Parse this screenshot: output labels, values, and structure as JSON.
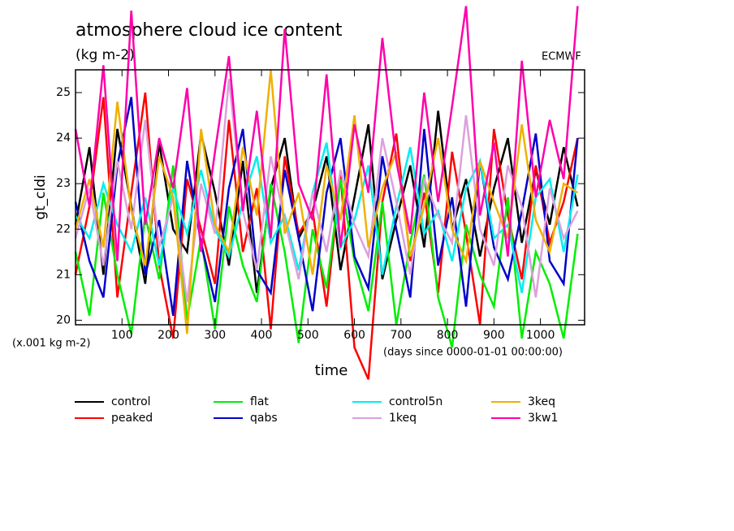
{
  "chart_data": {
    "type": "line",
    "title": "atmosphere cloud ice content",
    "subtitle": "(kg m-2)",
    "source": "ECMWF",
    "y_label": "gt_cldi",
    "y_unit": "(x.001 kg m-2)",
    "x_label": "time",
    "x_unit": "(days since 0000-01-01 00:00:00)",
    "x": [
      0,
      30,
      60,
      90,
      120,
      150,
      180,
      210,
      240,
      270,
      300,
      330,
      360,
      390,
      420,
      450,
      480,
      510,
      540,
      570,
      600,
      630,
      660,
      690,
      720,
      750,
      780,
      810,
      840,
      870,
      900,
      930,
      960,
      990,
      1020,
      1050,
      1080
    ],
    "xlim": [
      0,
      1095
    ],
    "xticks": [
      100,
      200,
      300,
      400,
      500,
      600,
      700,
      800,
      900,
      1000
    ],
    "ylim": [
      19.9,
      25.5
    ],
    "yticks": [
      20,
      21,
      22,
      23,
      24,
      25
    ],
    "series": [
      {
        "name": "control",
        "color": "#000000",
        "values": [
          22.1,
          23.8,
          21.0,
          24.2,
          22.5,
          20.8,
          23.9,
          22.0,
          21.5,
          24.1,
          22.8,
          21.2,
          23.5,
          20.6,
          22.9,
          24.0,
          21.8,
          22.4,
          23.6,
          21.1,
          22.7,
          24.3,
          20.9,
          22.2,
          23.4,
          21.6,
          24.6,
          22.0,
          23.1,
          21.4,
          22.9,
          24.0,
          21.7,
          23.3,
          22.1,
          23.8,
          22.5
        ]
      },
      {
        "name": "peaked",
        "color": "#ff0000",
        "values": [
          21.0,
          22.5,
          24.9,
          20.5,
          22.8,
          25.0,
          21.2,
          19.6,
          23.1,
          22.0,
          20.8,
          24.4,
          21.5,
          22.9,
          19.8,
          23.6,
          21.9,
          22.4,
          20.3,
          23.2,
          19.4,
          18.7,
          22.6,
          24.1,
          21.3,
          22.8,
          20.6,
          23.7,
          21.9,
          19.9,
          24.2,
          22.3,
          20.9,
          23.4,
          21.7,
          22.6,
          24.0
        ]
      },
      {
        "name": "flat",
        "color": "#00ee00",
        "values": [
          21.5,
          20.1,
          22.8,
          21.0,
          19.7,
          22.3,
          20.9,
          23.4,
          20.0,
          21.8,
          19.8,
          22.5,
          21.2,
          20.4,
          23.0,
          21.5,
          19.5,
          22.0,
          20.7,
          23.1,
          21.3,
          20.2,
          22.6,
          19.9,
          21.7,
          23.2,
          20.5,
          19.4,
          22.1,
          21.0,
          20.3,
          22.7,
          19.6,
          21.5,
          20.8,
          19.6,
          21.9
        ]
      },
      {
        "name": "qabs",
        "color": "#0000cc",
        "values": [
          22.6,
          21.3,
          20.5,
          23.4,
          24.9,
          21.0,
          22.2,
          20.1,
          23.5,
          21.7,
          20.4,
          22.9,
          24.2,
          21.1,
          20.6,
          23.3,
          21.8,
          20.2,
          22.8,
          24.0,
          21.4,
          20.7,
          23.6,
          22.0,
          20.5,
          24.2,
          21.2,
          22.7,
          20.3,
          23.5,
          21.6,
          20.9,
          22.4,
          24.1,
          21.3,
          20.8,
          24.0
        ]
      },
      {
        "name": "control5n",
        "color": "#00eeee",
        "values": [
          22.3,
          21.8,
          23.0,
          22.1,
          21.5,
          22.7,
          21.2,
          22.9,
          21.9,
          23.3,
          22.0,
          21.4,
          22.6,
          23.6,
          21.7,
          22.3,
          21.1,
          22.8,
          23.9,
          21.6,
          22.2,
          23.4,
          21.0,
          22.5,
          23.8,
          21.9,
          22.4,
          21.3,
          22.9,
          23.5,
          21.8,
          22.1,
          20.6,
          22.7,
          23.1,
          21.5,
          23.2
        ]
      },
      {
        "name": "1keq",
        "color": "#dda0dd",
        "values": [
          21.8,
          22.9,
          21.2,
          23.5,
          22.0,
          24.4,
          21.6,
          22.7,
          20.4,
          23.0,
          21.9,
          25.3,
          22.4,
          21.1,
          23.6,
          22.2,
          20.9,
          22.8,
          21.5,
          23.3,
          22.1,
          21.4,
          24.0,
          22.6,
          21.0,
          23.1,
          22.3,
          21.7,
          24.5,
          22.0,
          21.2,
          23.4,
          22.5,
          20.5,
          22.9,
          21.8,
          22.4
        ]
      },
      {
        "name": "3keq",
        "color": "#f0b000",
        "values": [
          22.0,
          23.1,
          21.6,
          24.8,
          22.4,
          21.2,
          23.6,
          22.7,
          19.7,
          24.2,
          22.1,
          21.5,
          23.8,
          22.3,
          25.5,
          21.9,
          22.8,
          21.0,
          23.4,
          22.2,
          24.5,
          21.6,
          22.9,
          23.7,
          21.4,
          22.5,
          24.0,
          22.0,
          21.3,
          23.5,
          22.6,
          21.8,
          24.3,
          22.2,
          21.5,
          23.0,
          22.8
        ]
      },
      {
        "name": "3kw1",
        "color": "#ff00aa",
        "values": [
          24.2,
          22.5,
          25.6,
          21.3,
          26.8,
          22.1,
          24.0,
          22.9,
          25.1,
          21.5,
          23.7,
          25.8,
          22.4,
          24.6,
          21.8,
          26.4,
          23.0,
          22.2,
          25.4,
          21.6,
          24.3,
          22.8,
          26.2,
          23.5,
          21.9,
          25.0,
          22.6,
          24.7,
          26.9,
          22.3,
          23.9,
          21.4,
          25.7,
          22.7,
          24.4,
          23.1,
          26.9
        ]
      }
    ]
  }
}
